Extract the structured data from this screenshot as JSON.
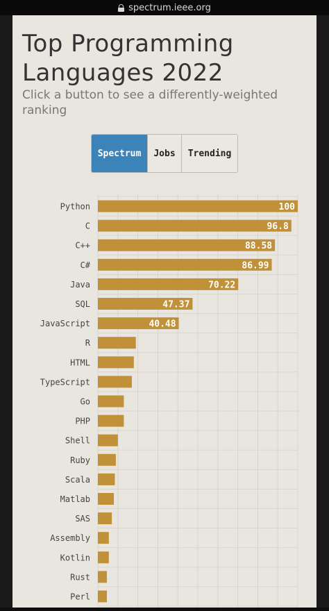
{
  "browser": {
    "url": "spectrum.ieee.org"
  },
  "header": {
    "title": "Top Programming Languages 2022",
    "subtitle": "Click a button to see a differently-weighted ranking"
  },
  "buttons": [
    {
      "label": "Spectrum",
      "active": true
    },
    {
      "label": "Jobs",
      "active": false
    },
    {
      "label": "Trending",
      "active": false
    }
  ],
  "colors": {
    "bar": "#c1913a",
    "active_button": "#3b83b8",
    "background": "#e9e6e0"
  },
  "chart_data": {
    "type": "bar",
    "orientation": "horizontal",
    "categories": [
      "Python",
      "C",
      "C++",
      "C#",
      "Java",
      "SQL",
      "JavaScript",
      "R",
      "HTML",
      "TypeScript",
      "Go",
      "PHP",
      "Shell",
      "Ruby",
      "Scala",
      "Matlab",
      "SAS",
      "Assembly",
      "Kotlin",
      "Rust",
      "Perl"
    ],
    "values": [
      100,
      96.8,
      88.58,
      86.99,
      70.22,
      47.37,
      40.48,
      19,
      18,
      17,
      13,
      13,
      10,
      9,
      8.5,
      8,
      7,
      5.5,
      5.5,
      4.5,
      4.5
    ],
    "data_labels": [
      "100",
      "96.8",
      "88.58",
      "86.99",
      "70.22",
      "47.37",
      "40.48",
      "",
      "",
      "",
      "",
      "",
      "",
      "",
      "",
      "",
      "",
      "",
      "",
      "",
      ""
    ],
    "xlim": [
      0,
      100
    ],
    "grid": true,
    "legend": "none"
  }
}
